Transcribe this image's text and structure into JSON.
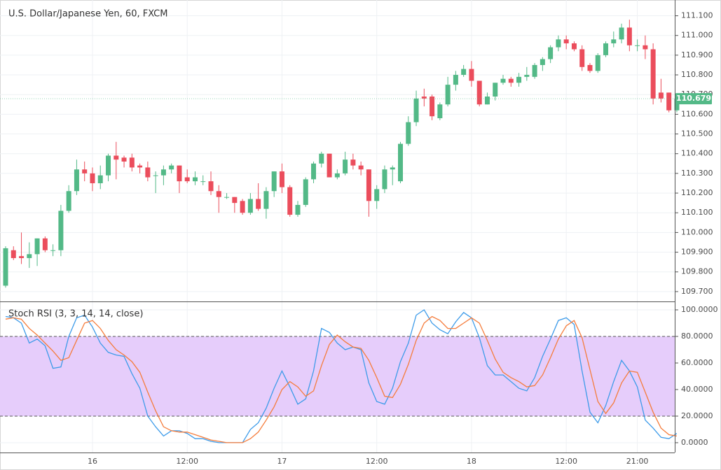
{
  "chart_data": [
    {
      "type": "candlestick",
      "title": "U.S. Dollar/Japanese Yen, 60, FXCM",
      "categories": [
        null,
        null,
        null,
        null,
        null,
        null,
        null,
        null,
        null,
        null,
        null,
        "16",
        null,
        null,
        null,
        null,
        null,
        null,
        null,
        null,
        null,
        null,
        null,
        "12:00",
        null,
        null,
        null,
        null,
        null,
        null,
        null,
        null,
        null,
        null,
        null,
        "17",
        null,
        null,
        null,
        null,
        null,
        null,
        null,
        null,
        null,
        null,
        null,
        "12:00",
        null,
        null,
        null,
        null,
        null,
        null,
        null,
        null,
        null,
        null,
        null,
        "18",
        null,
        null,
        null,
        null,
        null,
        null,
        null,
        null,
        null,
        null,
        null,
        "12:00",
        null,
        null,
        null,
        null,
        null,
        null,
        null,
        null,
        "21:00",
        null,
        null,
        null,
        null,
        null
      ],
      "open": [
        109.73,
        109.91,
        109.88,
        109.87,
        109.89,
        109.97,
        109.91,
        109.91,
        110.11,
        110.21,
        110.32,
        110.3,
        110.25,
        110.29,
        110.39,
        110.38,
        110.38,
        110.34,
        110.33,
        110.29,
        110.29,
        110.32,
        110.34,
        110.28,
        110.26,
        110.26,
        110.26,
        110.21,
        110.18,
        110.18,
        110.16,
        110.1,
        110.17,
        110.12,
        110.21,
        110.31,
        110.23,
        110.09,
        110.14,
        110.27,
        110.35,
        110.4,
        110.28,
        110.3,
        110.37,
        110.34,
        110.32,
        110.16,
        110.22,
        110.32,
        110.26,
        110.45,
        110.56,
        110.69,
        110.69,
        110.58,
        110.65,
        110.75,
        110.8,
        110.83,
        110.77,
        110.65,
        110.69,
        110.76,
        110.78,
        110.76,
        110.79,
        110.79,
        110.85,
        110.88,
        110.94,
        110.98,
        110.96,
        110.93,
        110.85,
        110.82,
        110.9,
        110.96,
        110.98,
        111.04,
        110.95,
        110.95,
        110.93,
        110.71,
        110.71,
        110.62
      ],
      "high": [
        109.93,
        109.93,
        110.0,
        109.95,
        109.97,
        109.98,
        109.94,
        110.14,
        110.24,
        110.37,
        110.36,
        110.33,
        110.34,
        110.4,
        110.46,
        110.39,
        110.4,
        110.35,
        110.36,
        110.31,
        110.34,
        110.35,
        110.34,
        110.32,
        110.31,
        110.29,
        110.31,
        110.24,
        110.2,
        110.18,
        110.17,
        110.2,
        110.25,
        110.23,
        110.31,
        110.35,
        110.24,
        110.16,
        110.28,
        110.36,
        110.41,
        110.4,
        110.32,
        110.41,
        110.4,
        110.36,
        110.32,
        110.24,
        110.34,
        110.34,
        110.46,
        110.59,
        110.72,
        110.73,
        110.7,
        110.66,
        110.79,
        110.82,
        110.85,
        110.87,
        110.77,
        110.71,
        110.76,
        110.8,
        110.79,
        110.81,
        110.84,
        110.86,
        110.89,
        110.95,
        111.0,
        111.0,
        110.97,
        110.95,
        110.86,
        110.91,
        110.97,
        111.02,
        111.06,
        111.08,
        110.98,
        111.0,
        110.96,
        110.78,
        110.71,
        110.68
      ],
      "low": [
        109.72,
        109.86,
        109.84,
        109.82,
        109.83,
        109.9,
        109.88,
        109.88,
        110.1,
        110.19,
        110.26,
        110.21,
        110.22,
        110.26,
        110.27,
        110.33,
        110.31,
        110.3,
        110.26,
        110.2,
        110.24,
        110.3,
        110.2,
        110.25,
        110.24,
        110.24,
        110.19,
        110.1,
        110.17,
        110.1,
        110.09,
        110.09,
        110.11,
        110.07,
        110.18,
        110.2,
        110.08,
        110.08,
        110.13,
        110.25,
        110.33,
        110.28,
        110.27,
        110.29,
        110.32,
        110.29,
        110.08,
        110.12,
        110.2,
        110.24,
        110.25,
        110.44,
        110.54,
        110.64,
        110.57,
        110.57,
        110.64,
        110.72,
        110.79,
        110.74,
        110.64,
        110.65,
        110.67,
        110.75,
        110.74,
        110.74,
        110.77,
        110.78,
        110.82,
        110.86,
        110.92,
        110.93,
        110.92,
        110.82,
        110.81,
        110.81,
        110.89,
        110.94,
        110.96,
        110.92,
        110.92,
        110.88,
        110.65,
        110.66,
        110.61,
        110.61
      ],
      "close": [
        109.92,
        109.87,
        109.87,
        109.89,
        109.97,
        109.91,
        109.91,
        110.11,
        110.21,
        110.32,
        110.3,
        110.25,
        110.29,
        110.39,
        110.37,
        110.36,
        110.33,
        110.33,
        110.28,
        110.29,
        110.32,
        110.34,
        110.26,
        110.26,
        110.28,
        110.26,
        110.21,
        110.18,
        110.18,
        110.15,
        110.1,
        110.17,
        110.12,
        110.21,
        110.31,
        110.23,
        110.09,
        110.14,
        110.27,
        110.35,
        110.4,
        110.28,
        110.3,
        110.37,
        110.34,
        110.32,
        110.16,
        110.22,
        110.32,
        110.33,
        110.45,
        110.56,
        110.68,
        110.68,
        110.59,
        110.65,
        110.75,
        110.8,
        110.83,
        110.77,
        110.65,
        110.69,
        110.76,
        110.78,
        110.76,
        110.79,
        110.8,
        110.85,
        110.88,
        110.94,
        110.98,
        110.96,
        110.93,
        110.84,
        110.82,
        110.9,
        110.96,
        110.98,
        111.04,
        110.95,
        110.95,
        110.93,
        110.68,
        110.68,
        110.62,
        110.68
      ],
      "up_color": "#53b987",
      "down_color": "#eb4d5c",
      "last_price": 110.679,
      "ylim": [
        109.65,
        111.18
      ],
      "yticks": [
        {
          "value": 109.7,
          "label": "109.700"
        },
        {
          "value": 109.8,
          "label": "109.800"
        },
        {
          "value": 109.9,
          "label": "109.900"
        },
        {
          "value": 110.0,
          "label": "110.000"
        },
        {
          "value": 110.1,
          "label": "110.100"
        },
        {
          "value": 110.2,
          "label": "110.200"
        },
        {
          "value": 110.3,
          "label": "110.300"
        },
        {
          "value": 110.4,
          "label": "110.400"
        },
        {
          "value": 110.5,
          "label": "110.500"
        },
        {
          "value": 110.6,
          "label": "110.600"
        },
        {
          "value": 110.7,
          "label": "110.700"
        },
        {
          "value": 110.8,
          "label": "110.800"
        },
        {
          "value": 110.9,
          "label": "110.900"
        },
        {
          "value": 111.0,
          "label": "111.000"
        },
        {
          "value": 111.1,
          "label": "111.100"
        }
      ],
      "grid": true
    },
    {
      "type": "line",
      "title": "Stoch RSI (3, 3, 14, 14, close)",
      "series": [
        {
          "name": "K",
          "color": "#3d9be9",
          "values": [
            95,
            94,
            90,
            75,
            78,
            73,
            56,
            57,
            80,
            94,
            96,
            87,
            75,
            68,
            66,
            65,
            52,
            41,
            20,
            12,
            5,
            9,
            9,
            7,
            3,
            3,
            1,
            0,
            0,
            0,
            0,
            10,
            15,
            26,
            41,
            54,
            42,
            29,
            33,
            54,
            86,
            83,
            75,
            70,
            72,
            70,
            45,
            31,
            29,
            41,
            61,
            75,
            96,
            100,
            90,
            85,
            82,
            91,
            98,
            94,
            79,
            58,
            51,
            51,
            46,
            41,
            39,
            49,
            65,
            78,
            92,
            94,
            89,
            54,
            23,
            15,
            28,
            46,
            62,
            54,
            42,
            17,
            11,
            4,
            3,
            7
          ]
        },
        {
          "name": "D",
          "color": "#f57c3b",
          "values": [
            93,
            94,
            93,
            86,
            81,
            75,
            69,
            62,
            64,
            77,
            90,
            92,
            86,
            77,
            70,
            66,
            61,
            53,
            38,
            24,
            12,
            9,
            8,
            8,
            6,
            4,
            2,
            1,
            0,
            0,
            0,
            3,
            8,
            17,
            27,
            40,
            46,
            42,
            35,
            39,
            58,
            74,
            81,
            76,
            72,
            71,
            62,
            49,
            35,
            34,
            44,
            59,
            77,
            90,
            95,
            92,
            86,
            86,
            90,
            94,
            90,
            77,
            63,
            53,
            49,
            46,
            42,
            43,
            51,
            64,
            78,
            88,
            92,
            79,
            55,
            31,
            22,
            30,
            45,
            54,
            53,
            38,
            23,
            11,
            6,
            5
          ]
        }
      ],
      "hlines": [
        20,
        80
      ],
      "band_color": "#e6cdfb",
      "ylim": [
        -7.4,
        105.8
      ],
      "yticks": [
        {
          "value": 0,
          "label": "0.0000"
        },
        {
          "value": 20,
          "label": "20.0000"
        },
        {
          "value": 40,
          "label": "40.0000"
        },
        {
          "value": 60,
          "label": "60.0000"
        },
        {
          "value": 80,
          "label": "80.0000"
        },
        {
          "value": 100,
          "label": "100.0000"
        }
      ],
      "grid": true
    }
  ]
}
